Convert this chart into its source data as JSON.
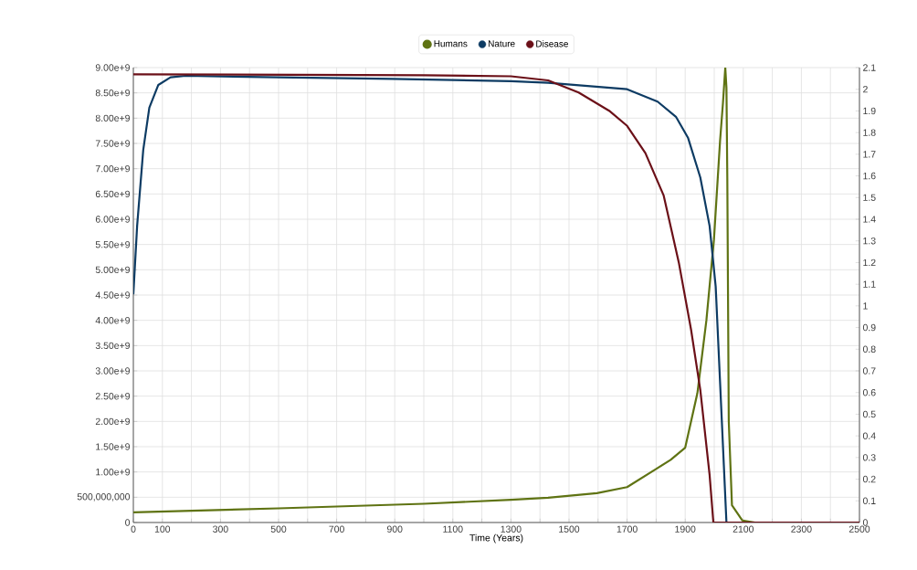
{
  "chart_data": {
    "type": "line",
    "xlabel": "Time (Years)",
    "legend": "top",
    "grid": true,
    "line_style": "solid",
    "xlim": [
      0,
      2500
    ],
    "xticks": [
      0,
      100,
      {
        "value": 200,
        "label": null
      },
      300,
      {
        "value": 400,
        "label": null
      },
      500,
      {
        "value": 600,
        "label": null
      },
      700,
      {
        "value": 800,
        "label": null
      },
      900,
      {
        "value": 1000,
        "label": null
      },
      1100,
      {
        "value": 1200,
        "label": null
      },
      1300,
      {
        "value": 1400,
        "label": null
      },
      1500,
      {
        "value": 1600,
        "label": null
      },
      1700,
      {
        "value": 1800,
        "label": null
      },
      1900,
      {
        "value": 2000,
        "label": null
      },
      2100,
      {
        "value": 2200,
        "label": null
      },
      2300,
      {
        "value": 2400,
        "label": null
      },
      2500
    ],
    "ylim": [
      0,
      9000000000
    ],
    "yticks": [
      0,
      {
        "value": 500000000,
        "label": "500,000,000"
      },
      {
        "value": 1000000000,
        "label": "1.00e+9"
      },
      {
        "value": 1500000000,
        "label": "1.50e+9"
      },
      {
        "value": 2000000000,
        "label": "2.00e+9"
      },
      {
        "value": 2500000000,
        "label": "2.50e+9"
      },
      {
        "value": 3000000000,
        "label": "3.00e+9"
      },
      {
        "value": 3500000000,
        "label": "3.50e+9"
      },
      {
        "value": 4000000000,
        "label": "4.00e+9"
      },
      {
        "value": 4500000000,
        "label": "4.50e+9"
      },
      {
        "value": 5000000000,
        "label": "5.00e+9"
      },
      {
        "value": 5500000000,
        "label": "5.50e+9"
      },
      {
        "value": 6000000000,
        "label": "6.00e+9"
      },
      {
        "value": 6500000000,
        "label": "6.50e+9"
      },
      {
        "value": 7000000000,
        "label": "7.00e+9"
      },
      {
        "value": 7500000000,
        "label": "7.50e+9"
      },
      {
        "value": 8000000000,
        "label": "8.00e+9"
      },
      {
        "value": 8500000000,
        "label": "8.50e+9"
      },
      {
        "value": 9000000000,
        "label": "9.00e+9"
      }
    ],
    "y2lim": [
      0,
      2.1
    ],
    "y2ticks": [
      0,
      0.1,
      0.2,
      0.3,
      0.4,
      0.5,
      0.6,
      0.7,
      0.8,
      0.9,
      1,
      1.1,
      1.2,
      1.3,
      1.4,
      1.5,
      1.6,
      1.7,
      1.8,
      1.9,
      2,
      2.1
    ],
    "series": [
      {
        "name": "Humans",
        "color": "#5f7313",
        "x": [
          0,
          500,
          1000,
          1300,
          1428,
          1596,
          1700,
          1800,
          1850,
          1900,
          1942,
          1973,
          1999,
          2020,
          2030,
          2038,
          2042,
          2045,
          2050,
          2061,
          2097,
          2140,
          2500
        ],
        "values": [
          200000000,
          280000000,
          370000000,
          450000000,
          490000000,
          580000000,
          700000000,
          1060000000,
          1240000000,
          1480000000,
          2560000000,
          4000000000,
          5600000000,
          7550000000,
          8300000000,
          9000000000,
          8600000000,
          6800000000,
          2000000000,
          340000000,
          40000000,
          0,
          0
        ]
      },
      {
        "name": "Nature",
        "color": "#0d3b63",
        "axis": "y2",
        "x": [
          0,
          13,
          34,
          55,
          86,
          128,
          180,
          500,
          893,
          1300,
          1428,
          1700,
          1805,
          1868,
          1910,
          1952,
          1984,
          2005,
          2026,
          2042,
          2500
        ],
        "values": [
          1.053,
          1.369,
          1.719,
          1.915,
          2.02,
          2.055,
          2.062,
          2.055,
          2.048,
          2.037,
          2.03,
          2.0,
          1.943,
          1.873,
          1.775,
          1.593,
          1.369,
          1.089,
          0.472,
          0,
          0
        ]
      },
      {
        "name": "Disease",
        "color": "#6b1018",
        "axis": "y2",
        "x": [
          0,
          1000,
          1300,
          1428,
          1533,
          1638,
          1700,
          1763,
          1826,
          1878,
          1920,
          1952,
          1984,
          1997,
          2500
        ],
        "values": [
          2.069,
          2.065,
          2.06,
          2.041,
          1.985,
          1.901,
          1.831,
          1.705,
          1.509,
          1.2,
          0.892,
          0.612,
          0.22,
          0,
          0
        ]
      }
    ]
  }
}
